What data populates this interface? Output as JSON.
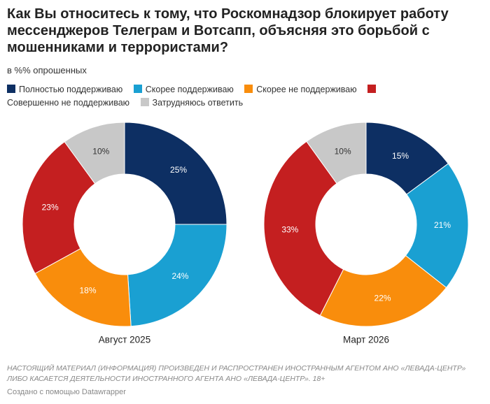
{
  "header": {
    "title": "Как Вы относитесь к тому, что Роскомнадзор блокирует работу мессенджеров Телеграм и Вотсапп, объясняя это борьбой с мошенниками и террористами?",
    "subtitle": "в %% опрошенных"
  },
  "chart_data": [
    {
      "type": "donut",
      "title": "Август 2025",
      "categories": [
        "Полностью поддерживаю",
        "Скорее поддерживаю",
        "Скорее не поддерживаю",
        "Совершенно не поддерживаю",
        "Затрудняюсь ответить"
      ],
      "colors": [
        "#0d2f63",
        "#1aa0d2",
        "#f98d0c",
        "#c41f20",
        "#c8c8c8"
      ],
      "values": [
        25,
        24,
        18,
        23,
        10
      ],
      "value_labels": [
        "25%",
        "24%",
        "18%",
        "23%",
        "10%"
      ]
    },
    {
      "type": "donut",
      "title": "Март 2026",
      "categories": [
        "Полностью поддерживаю",
        "Скорее поддерживаю",
        "Скорее не поддерживаю",
        "Совершенно не поддерживаю",
        "Затрудняюсь ответить"
      ],
      "colors": [
        "#0d2f63",
        "#1aa0d2",
        "#f98d0c",
        "#c41f20",
        "#c8c8c8"
      ],
      "values": [
        15,
        21,
        22,
        33,
        10
      ],
      "value_labels": [
        "15%",
        "21%",
        "22%",
        "33%",
        "10%"
      ]
    }
  ],
  "footer": {
    "note": "НАСТОЯЩИЙ МАТЕРИАЛ (ИНФОРМАЦИЯ) ПРОИЗВЕДЕН И РАСПРОСТРАНЕН ИНОСТРАННЫМ АГЕНТОМ АНО «ЛЕВАДА-ЦЕНТР» ЛИБО КАСАЕТСЯ ДЕЯТЕЛЬНОСТИ ИНОСТРАННОГО АГЕНТА АНО «ЛЕВАДА-ЦЕНТР». 18+",
    "credit": "Создано с помощью Datawrapper"
  }
}
